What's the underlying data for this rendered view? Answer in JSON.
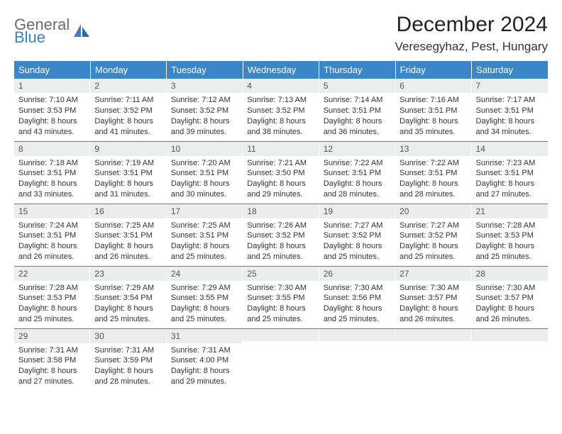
{
  "logo": {
    "top": "General",
    "bottom": "Blue"
  },
  "title": "December 2024",
  "location": "Veresegyhaz, Pest, Hungary",
  "colors": {
    "header_bg": "#3a86c8",
    "header_text": "#ffffff",
    "daynum_bg": "#eceded",
    "border": "#3a86c8",
    "logo_gray": "#6a6a6a",
    "logo_blue": "#3a7fc4"
  },
  "weekdays": [
    "Sunday",
    "Monday",
    "Tuesday",
    "Wednesday",
    "Thursday",
    "Friday",
    "Saturday"
  ],
  "weeks": [
    [
      {
        "n": "1",
        "sr": "Sunrise: 7:10 AM",
        "ss": "Sunset: 3:53 PM",
        "d1": "Daylight: 8 hours",
        "d2": "and 43 minutes."
      },
      {
        "n": "2",
        "sr": "Sunrise: 7:11 AM",
        "ss": "Sunset: 3:52 PM",
        "d1": "Daylight: 8 hours",
        "d2": "and 41 minutes."
      },
      {
        "n": "3",
        "sr": "Sunrise: 7:12 AM",
        "ss": "Sunset: 3:52 PM",
        "d1": "Daylight: 8 hours",
        "d2": "and 39 minutes."
      },
      {
        "n": "4",
        "sr": "Sunrise: 7:13 AM",
        "ss": "Sunset: 3:52 PM",
        "d1": "Daylight: 8 hours",
        "d2": "and 38 minutes."
      },
      {
        "n": "5",
        "sr": "Sunrise: 7:14 AM",
        "ss": "Sunset: 3:51 PM",
        "d1": "Daylight: 8 hours",
        "d2": "and 36 minutes."
      },
      {
        "n": "6",
        "sr": "Sunrise: 7:16 AM",
        "ss": "Sunset: 3:51 PM",
        "d1": "Daylight: 8 hours",
        "d2": "and 35 minutes."
      },
      {
        "n": "7",
        "sr": "Sunrise: 7:17 AM",
        "ss": "Sunset: 3:51 PM",
        "d1": "Daylight: 8 hours",
        "d2": "and 34 minutes."
      }
    ],
    [
      {
        "n": "8",
        "sr": "Sunrise: 7:18 AM",
        "ss": "Sunset: 3:51 PM",
        "d1": "Daylight: 8 hours",
        "d2": "and 33 minutes."
      },
      {
        "n": "9",
        "sr": "Sunrise: 7:19 AM",
        "ss": "Sunset: 3:51 PM",
        "d1": "Daylight: 8 hours",
        "d2": "and 31 minutes."
      },
      {
        "n": "10",
        "sr": "Sunrise: 7:20 AM",
        "ss": "Sunset: 3:51 PM",
        "d1": "Daylight: 8 hours",
        "d2": "and 30 minutes."
      },
      {
        "n": "11",
        "sr": "Sunrise: 7:21 AM",
        "ss": "Sunset: 3:50 PM",
        "d1": "Daylight: 8 hours",
        "d2": "and 29 minutes."
      },
      {
        "n": "12",
        "sr": "Sunrise: 7:22 AM",
        "ss": "Sunset: 3:51 PM",
        "d1": "Daylight: 8 hours",
        "d2": "and 28 minutes."
      },
      {
        "n": "13",
        "sr": "Sunrise: 7:22 AM",
        "ss": "Sunset: 3:51 PM",
        "d1": "Daylight: 8 hours",
        "d2": "and 28 minutes."
      },
      {
        "n": "14",
        "sr": "Sunrise: 7:23 AM",
        "ss": "Sunset: 3:51 PM",
        "d1": "Daylight: 8 hours",
        "d2": "and 27 minutes."
      }
    ],
    [
      {
        "n": "15",
        "sr": "Sunrise: 7:24 AM",
        "ss": "Sunset: 3:51 PM",
        "d1": "Daylight: 8 hours",
        "d2": "and 26 minutes."
      },
      {
        "n": "16",
        "sr": "Sunrise: 7:25 AM",
        "ss": "Sunset: 3:51 PM",
        "d1": "Daylight: 8 hours",
        "d2": "and 26 minutes."
      },
      {
        "n": "17",
        "sr": "Sunrise: 7:25 AM",
        "ss": "Sunset: 3:51 PM",
        "d1": "Daylight: 8 hours",
        "d2": "and 25 minutes."
      },
      {
        "n": "18",
        "sr": "Sunrise: 7:26 AM",
        "ss": "Sunset: 3:52 PM",
        "d1": "Daylight: 8 hours",
        "d2": "and 25 minutes."
      },
      {
        "n": "19",
        "sr": "Sunrise: 7:27 AM",
        "ss": "Sunset: 3:52 PM",
        "d1": "Daylight: 8 hours",
        "d2": "and 25 minutes."
      },
      {
        "n": "20",
        "sr": "Sunrise: 7:27 AM",
        "ss": "Sunset: 3:52 PM",
        "d1": "Daylight: 8 hours",
        "d2": "and 25 minutes."
      },
      {
        "n": "21",
        "sr": "Sunrise: 7:28 AM",
        "ss": "Sunset: 3:53 PM",
        "d1": "Daylight: 8 hours",
        "d2": "and 25 minutes."
      }
    ],
    [
      {
        "n": "22",
        "sr": "Sunrise: 7:28 AM",
        "ss": "Sunset: 3:53 PM",
        "d1": "Daylight: 8 hours",
        "d2": "and 25 minutes."
      },
      {
        "n": "23",
        "sr": "Sunrise: 7:29 AM",
        "ss": "Sunset: 3:54 PM",
        "d1": "Daylight: 8 hours",
        "d2": "and 25 minutes."
      },
      {
        "n": "24",
        "sr": "Sunrise: 7:29 AM",
        "ss": "Sunset: 3:55 PM",
        "d1": "Daylight: 8 hours",
        "d2": "and 25 minutes."
      },
      {
        "n": "25",
        "sr": "Sunrise: 7:30 AM",
        "ss": "Sunset: 3:55 PM",
        "d1": "Daylight: 8 hours",
        "d2": "and 25 minutes."
      },
      {
        "n": "26",
        "sr": "Sunrise: 7:30 AM",
        "ss": "Sunset: 3:56 PM",
        "d1": "Daylight: 8 hours",
        "d2": "and 25 minutes."
      },
      {
        "n": "27",
        "sr": "Sunrise: 7:30 AM",
        "ss": "Sunset: 3:57 PM",
        "d1": "Daylight: 8 hours",
        "d2": "and 26 minutes."
      },
      {
        "n": "28",
        "sr": "Sunrise: 7:30 AM",
        "ss": "Sunset: 3:57 PM",
        "d1": "Daylight: 8 hours",
        "d2": "and 26 minutes."
      }
    ],
    [
      {
        "n": "29",
        "sr": "Sunrise: 7:31 AM",
        "ss": "Sunset: 3:58 PM",
        "d1": "Daylight: 8 hours",
        "d2": "and 27 minutes."
      },
      {
        "n": "30",
        "sr": "Sunrise: 7:31 AM",
        "ss": "Sunset: 3:59 PM",
        "d1": "Daylight: 8 hours",
        "d2": "and 28 minutes."
      },
      {
        "n": "31",
        "sr": "Sunrise: 7:31 AM",
        "ss": "Sunset: 4:00 PM",
        "d1": "Daylight: 8 hours",
        "d2": "and 29 minutes."
      },
      {
        "n": "",
        "sr": "",
        "ss": "",
        "d1": "",
        "d2": ""
      },
      {
        "n": "",
        "sr": "",
        "ss": "",
        "d1": "",
        "d2": ""
      },
      {
        "n": "",
        "sr": "",
        "ss": "",
        "d1": "",
        "d2": ""
      },
      {
        "n": "",
        "sr": "",
        "ss": "",
        "d1": "",
        "d2": ""
      }
    ]
  ]
}
